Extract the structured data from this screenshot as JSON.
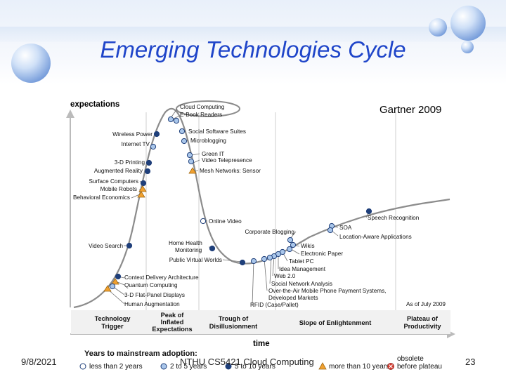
{
  "slide": {
    "title": "Emerging Technologies Cycle",
    "source": "Gartner 2009",
    "footer_date": "9/8/2021",
    "footer_center": "NTHU CS5421 Cloud Computing",
    "page_number": "23"
  },
  "axes": {
    "y_label": "expectations",
    "x_label": "time"
  },
  "as_of": "As of July 2009",
  "phases": [
    "Technology Trigger",
    "Peak of Inflated Expectations",
    "Trough of Disillusionment",
    "Slope of Enlightenment",
    "Plateau of Productivity"
  ],
  "legend": {
    "heading": "Years to mainstream adoption:",
    "items": [
      {
        "label": "less than 2 years",
        "marker": "white-circle"
      },
      {
        "label": "2 to 5 years",
        "marker": "light-blue-circle"
      },
      {
        "label": "5 to 10 years",
        "marker": "dark-blue-circle"
      },
      {
        "label": "more than 10 years",
        "marker": "orange-triangle"
      },
      {
        "label": "before plateau",
        "marker": "red-x-circle",
        "prefix": "obsolete"
      }
    ]
  },
  "colors": {
    "title": "#1f45c9",
    "curve": "#8c8c8c",
    "white_marker": "#ffffff",
    "light_marker": "#a9c6ea",
    "dark_marker": "#1f3f7a",
    "triangle": "#f0a030",
    "highlight": "#8c8c8c"
  },
  "technologies": [
    {
      "label": "Cloud Computing",
      "marker": "light",
      "highlighted": true
    },
    {
      "label": "E-Book Readers",
      "marker": "light"
    },
    {
      "label": "Wireless Power",
      "marker": "dark"
    },
    {
      "label": "Social Software Suites",
      "marker": "light"
    },
    {
      "label": "Internet TV",
      "marker": "light"
    },
    {
      "label": "Microblogging",
      "marker": "light"
    },
    {
      "label": "3-D Printing",
      "marker": "dark"
    },
    {
      "label": "Green IT",
      "marker": "light"
    },
    {
      "label": "Video Telepresence",
      "marker": "light"
    },
    {
      "label": "Augmented Reality",
      "marker": "dark"
    },
    {
      "label": "Mesh Networks: Sensor",
      "marker": "triangle"
    },
    {
      "label": "Surface Computers",
      "marker": "dark"
    },
    {
      "label": "Mobile Robots",
      "marker": "triangle"
    },
    {
      "label": "Behavioral Economics",
      "marker": "triangle"
    },
    {
      "label": "Online Video",
      "marker": "white"
    },
    {
      "label": "Speech Recognition",
      "marker": "dark"
    },
    {
      "label": "Corporate Blogging",
      "marker": "light"
    },
    {
      "label": "SOA",
      "marker": "light"
    },
    {
      "label": "Location-Aware Applications",
      "marker": "light"
    },
    {
      "label": "Video Search",
      "marker": "dark"
    },
    {
      "label": "Home Health Monitoring",
      "marker": "dark"
    },
    {
      "label": "Wikis",
      "marker": "light"
    },
    {
      "label": "Electronic Paper",
      "marker": "light"
    },
    {
      "label": "Public Virtual Worlds",
      "marker": "dark"
    },
    {
      "label": "Tablet PC",
      "marker": "light"
    },
    {
      "label": "Idea Management",
      "marker": "light"
    },
    {
      "label": "Web 2.0",
      "marker": "light"
    },
    {
      "label": "Social Network Analysis",
      "marker": "light"
    },
    {
      "label": "Over-the-Air Mobile Phone Payment Systems, Developed Markets",
      "marker": "light"
    },
    {
      "label": "RFID (Case/Pallet)",
      "marker": "light"
    },
    {
      "label": "Context Delivery Architecture",
      "marker": "dark"
    },
    {
      "label": "Quantum Computing",
      "marker": "triangle"
    },
    {
      "label": "3-D Flat-Panel Displays",
      "marker": "light"
    },
    {
      "label": "Human Augmentation",
      "marker": "triangle"
    }
  ]
}
